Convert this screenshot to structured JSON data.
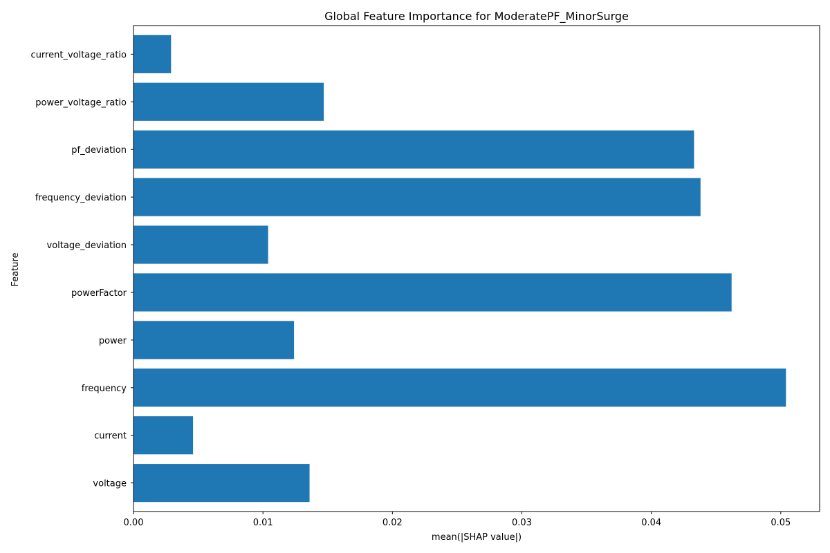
{
  "chart_data": {
    "type": "bar",
    "orientation": "horizontal",
    "title": "Global Feature Importance for ModeratePF_MinorSurge",
    "xlabel": "mean(|SHAP value|)",
    "ylabel": "Feature",
    "categories": [
      "voltage",
      "current",
      "frequency",
      "power",
      "powerFactor",
      "voltage_deviation",
      "frequency_deviation",
      "pf_deviation",
      "power_voltage_ratio",
      "current_voltage_ratio"
    ],
    "values": [
      0.0136,
      0.0046,
      0.0504,
      0.0124,
      0.0462,
      0.0104,
      0.0438,
      0.0433,
      0.0147,
      0.0029
    ],
    "xlim": [
      0,
      0.053
    ],
    "xticks": [
      0.0,
      0.01,
      0.02,
      0.03,
      0.04,
      0.05
    ],
    "xtick_labels": [
      "0.00",
      "0.01",
      "0.02",
      "0.03",
      "0.04",
      "0.05"
    ],
    "bar_color": "#1f77b4",
    "grid": false,
    "legend": "none"
  }
}
